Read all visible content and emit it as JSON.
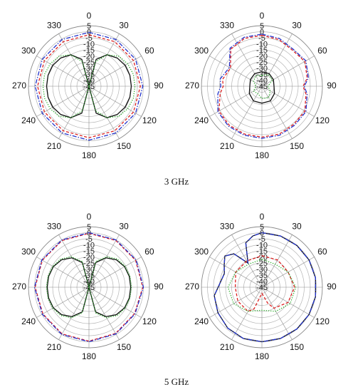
{
  "captions": [
    "3 GHz",
    "5 GHz"
  ],
  "chart_data": [
    {
      "type": "polar",
      "angle_ticks": [
        0,
        30,
        60,
        90,
        120,
        150,
        180,
        210,
        240,
        270,
        300,
        330
      ],
      "rlim": [
        -45,
        5
      ],
      "r_ticks": [
        5,
        0,
        -5,
        -10,
        -15,
        -20,
        -25,
        -30,
        -35,
        -40,
        -45
      ],
      "grid": true,
      "series": [
        {
          "style": "solid",
          "color": "#111111",
          "theta": [
            0,
            15,
            30,
            45,
            60,
            75,
            90,
            105,
            120,
            135,
            150,
            165,
            180,
            195,
            210,
            225,
            240,
            255,
            270,
            285,
            300,
            315,
            330,
            345,
            360
          ],
          "r": [
            -45,
            -22,
            -15,
            -12,
            -10.5,
            -10,
            -10,
            -10,
            -10.5,
            -12,
            -15,
            -22,
            -45,
            -22,
            -15,
            -12,
            -10.5,
            -10,
            -10,
            -10,
            -10.5,
            -12,
            -15,
            -22,
            -45
          ]
        },
        {
          "style": "dotted",
          "color": "#22aa22",
          "theta": [
            0,
            15,
            30,
            45,
            60,
            75,
            90,
            105,
            120,
            135,
            150,
            165,
            180,
            195,
            210,
            225,
            240,
            255,
            270,
            285,
            300,
            315,
            330,
            345,
            360
          ],
          "r": [
            -45,
            -24,
            -15,
            -10,
            -8,
            -7,
            -7,
            -7,
            -8,
            -10,
            -15,
            -24,
            -45,
            -24,
            -15,
            -10,
            -8,
            -7,
            -7,
            -7,
            -8,
            -10,
            -15,
            -24,
            -45
          ]
        },
        {
          "style": "dashed",
          "color": "#dd2222",
          "theta": [
            0,
            30,
            60,
            90,
            120,
            150,
            180,
            210,
            240,
            270,
            300,
            330,
            360
          ],
          "r": [
            -2.5,
            -2.5,
            -2.5,
            -2.5,
            -2.5,
            -2.5,
            -2.5,
            -2.5,
            -2.5,
            -2.5,
            -2.5,
            -2.5,
            -2.5
          ]
        },
        {
          "style": "dashdot",
          "color": "#2233cc",
          "theta": [
            0,
            30,
            60,
            90,
            120,
            150,
            180,
            210,
            240,
            270,
            300,
            330,
            360
          ],
          "r": [
            -0.5,
            -0.5,
            -0.5,
            -0.5,
            -0.5,
            -0.5,
            -0.5,
            -0.5,
            -0.5,
            -0.5,
            -0.5,
            -0.5,
            -0.5
          ]
        }
      ]
    },
    {
      "type": "polar",
      "angle_ticks": [
        0,
        30,
        60,
        90,
        120,
        150,
        180,
        210,
        240,
        270,
        300,
        330
      ],
      "rlim": [
        -45,
        5
      ],
      "r_ticks": [
        5,
        0,
        -5,
        -10,
        -15,
        -20,
        -25,
        -30,
        -35,
        -40,
        -45
      ],
      "grid": true,
      "series": [
        {
          "style": "solid",
          "color": "#111111",
          "theta": [
            0,
            30,
            60,
            90,
            120,
            150,
            180,
            210,
            240,
            270,
            300,
            330,
            360
          ],
          "r": [
            -33,
            -33,
            -34,
            -35,
            -33,
            -31,
            -31,
            -31,
            -33,
            -35,
            -34,
            -33,
            -33
          ]
        },
        {
          "style": "dotted",
          "color": "#22aa22",
          "theta": [
            0,
            30,
            60,
            90,
            120,
            150,
            180,
            210,
            240,
            270,
            300,
            330,
            360
          ],
          "r": [
            -36,
            -34,
            -35,
            -40,
            -37,
            -34,
            -35,
            -38,
            -37,
            -40,
            -37,
            -35,
            -36
          ]
        },
        {
          "style": "dashed",
          "color": "#dd2222",
          "theta": [
            0,
            20,
            40,
            60,
            80,
            90,
            100,
            120,
            140,
            160,
            180,
            200,
            220,
            240,
            260,
            270,
            280,
            300,
            320,
            340,
            360
          ],
          "r": [
            -3,
            -4,
            -6,
            -4,
            -7,
            -11,
            -8,
            -4,
            -4,
            -3,
            -3,
            -3,
            -3,
            -4,
            -10,
            -13,
            -12,
            -15,
            -5,
            -3,
            -3
          ]
        },
        {
          "style": "dashdot",
          "color": "#2233cc",
          "theta": [
            0,
            20,
            40,
            60,
            80,
            90,
            100,
            120,
            140,
            160,
            180,
            200,
            220,
            240,
            260,
            270,
            280,
            300,
            320,
            340,
            360
          ],
          "r": [
            -2,
            -3,
            -5,
            -3,
            -6,
            -10,
            -7,
            -3,
            -3,
            -2,
            -2,
            -2,
            -2,
            -3,
            -8,
            -11,
            -10,
            -14,
            -4,
            -2,
            -2
          ]
        }
      ]
    },
    {
      "type": "polar",
      "angle_ticks": [
        0,
        30,
        60,
        90,
        120,
        150,
        180,
        210,
        240,
        270,
        300,
        330
      ],
      "rlim": [
        -45,
        5
      ],
      "r_ticks": [
        5,
        0,
        -5,
        -10,
        -15,
        -20,
        -25,
        -30,
        -35,
        -40,
        -45
      ],
      "grid": true,
      "series": [
        {
          "style": "solid",
          "color": "#111111",
          "theta": [
            0,
            15,
            30,
            45,
            60,
            75,
            90,
            105,
            120,
            135,
            150,
            165,
            180,
            195,
            210,
            225,
            240,
            255,
            270,
            285,
            300,
            315,
            330,
            345,
            360
          ],
          "r": [
            -45,
            -24,
            -17,
            -13,
            -11,
            -10.5,
            -10.5,
            -10.5,
            -11,
            -13,
            -17,
            -24,
            -45,
            -24,
            -17,
            -13,
            -11,
            -10.5,
            -10.5,
            -10.5,
            -11,
            -13,
            -17,
            -24,
            -45
          ]
        },
        {
          "style": "dotted",
          "color": "#22aa22",
          "theta": [
            0,
            15,
            30,
            45,
            60,
            75,
            90,
            105,
            120,
            135,
            150,
            165,
            180,
            195,
            210,
            225,
            240,
            255,
            270,
            285,
            300,
            315,
            330,
            345,
            360
          ],
          "r": [
            -45,
            -23,
            -16,
            -12,
            -10.5,
            -10,
            -10,
            -10,
            -10.5,
            -12,
            -16,
            -23,
            -45,
            -23,
            -16,
            -12,
            -10.5,
            -10,
            -10,
            -10,
            -10.5,
            -12,
            -16,
            -23,
            -45
          ]
        },
        {
          "style": "dashed",
          "color": "#dd2222",
          "theta": [
            0,
            30,
            60,
            90,
            120,
            150,
            180,
            210,
            240,
            270,
            300,
            330,
            360
          ],
          "r": [
            -0.5,
            -0.5,
            -0.5,
            -0.5,
            -1.5,
            -1,
            -0.5,
            -0.5,
            -1,
            -0.5,
            -0.5,
            -0.5,
            -0.5
          ]
        },
        {
          "style": "dashdot",
          "color": "#2233cc",
          "theta": [
            0,
            30,
            60,
            90,
            120,
            150,
            180,
            210,
            240,
            270,
            300,
            330,
            360
          ],
          "r": [
            0,
            0,
            0,
            0,
            -1,
            -0.5,
            0,
            0,
            -0.5,
            0,
            0,
            0,
            0
          ]
        }
      ]
    },
    {
      "type": "polar",
      "angle_ticks": [
        0,
        30,
        60,
        90,
        120,
        150,
        180,
        210,
        240,
        270,
        300,
        330
      ],
      "rlim": [
        -45,
        5
      ],
      "r_ticks": [
        5,
        0,
        -5,
        -10,
        -15,
        -20,
        -25,
        -30,
        -35,
        -40,
        -45
      ],
      "grid": true,
      "series": [
        {
          "style": "solid",
          "color": "#111111",
          "theta": [
            0,
            20,
            40,
            60,
            80,
            100,
            120,
            140,
            160,
            180,
            200,
            220,
            240,
            260,
            280,
            290,
            300,
            310,
            320,
            330,
            340,
            350,
            360
          ],
          "r": [
            0,
            0,
            0,
            0,
            0,
            0,
            0,
            0,
            0,
            0,
            0,
            -1,
            -3,
            -5,
            -11,
            -12,
            -9,
            -5,
            -9,
            -22,
            -6,
            -2,
            0
          ]
        },
        {
          "style": "dashdot",
          "color": "#2233cc",
          "theta": [
            0,
            20,
            40,
            60,
            80,
            100,
            120,
            140,
            160,
            180,
            200,
            220,
            240,
            260,
            280,
            290,
            300,
            310,
            320,
            330,
            340,
            350,
            360
          ],
          "r": [
            0,
            0,
            0,
            0,
            0,
            0,
            0,
            0,
            0,
            0,
            0,
            -1,
            -3,
            -5,
            -11,
            -12,
            -9,
            -5,
            -9,
            -22,
            -6,
            -2,
            0
          ]
        },
        {
          "style": "dashed",
          "color": "#dd2222",
          "theta": [
            0,
            30,
            60,
            90,
            120,
            150,
            160,
            180,
            200,
            210,
            240,
            270,
            300,
            330,
            360
          ],
          "r": [
            -19,
            -19,
            -20,
            -18,
            -20,
            -25,
            -31,
            -40,
            -26,
            -22,
            -22,
            -23,
            -20,
            -20,
            -19
          ]
        },
        {
          "style": "dotted",
          "color": "#22aa22",
          "theta": [
            0,
            30,
            60,
            90,
            120,
            150,
            180,
            210,
            240,
            270,
            300,
            330,
            360
          ],
          "r": [
            -22,
            -23,
            -20,
            -17,
            -18,
            -22,
            -26,
            -22,
            -18,
            -17,
            -20,
            -23,
            -22
          ]
        }
      ]
    }
  ]
}
